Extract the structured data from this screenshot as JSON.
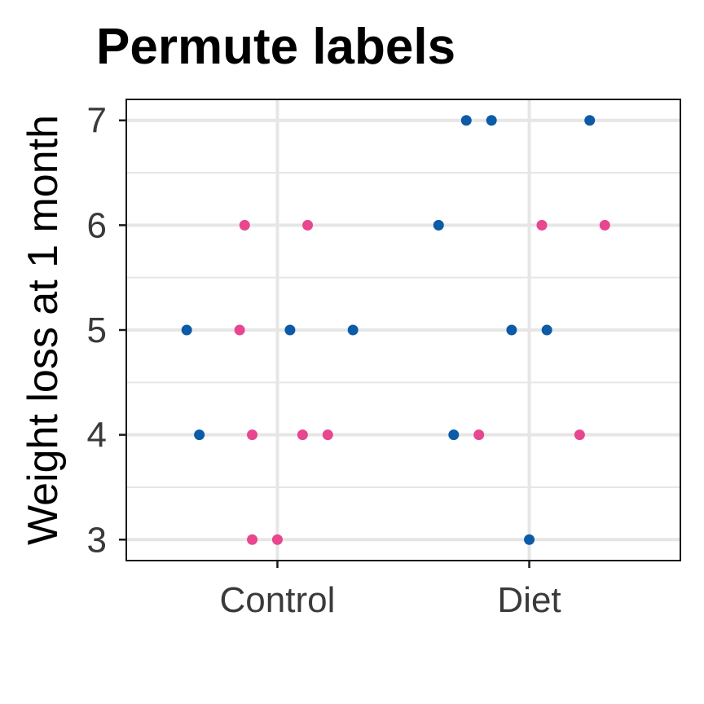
{
  "chart_data": {
    "type": "scatter",
    "title": "Permute labels",
    "xlabel": "",
    "ylabel": "Weight loss at 1 month",
    "categories": [
      "Control",
      "Diet"
    ],
    "y_ticks": [
      3,
      4,
      5,
      6,
      7
    ],
    "ylim": [
      2.8,
      7.2
    ],
    "grid": true,
    "legend": "none",
    "series": [
      {
        "color": "#0b5ba7",
        "points": [
          {
            "x": "Control",
            "offset": -0.36,
            "y": 5
          },
          {
            "x": "Control",
            "offset": 0.05,
            "y": 5
          },
          {
            "x": "Control",
            "offset": 0.3,
            "y": 5
          },
          {
            "x": "Control",
            "offset": -0.31,
            "y": 4
          },
          {
            "x": "Diet",
            "offset": -0.25,
            "y": 7
          },
          {
            "x": "Diet",
            "offset": -0.15,
            "y": 7
          },
          {
            "x": "Diet",
            "offset": 0.24,
            "y": 7
          },
          {
            "x": "Diet",
            "offset": -0.36,
            "y": 6
          },
          {
            "x": "Diet",
            "offset": -0.07,
            "y": 5
          },
          {
            "x": "Diet",
            "offset": 0.07,
            "y": 5
          },
          {
            "x": "Diet",
            "offset": -0.3,
            "y": 4
          },
          {
            "x": "Diet",
            "offset": 0.0,
            "y": 3
          }
        ]
      },
      {
        "color": "#e8468f",
        "points": [
          {
            "x": "Control",
            "offset": -0.13,
            "y": 6
          },
          {
            "x": "Control",
            "offset": 0.12,
            "y": 6
          },
          {
            "x": "Control",
            "offset": -0.15,
            "y": 5
          },
          {
            "x": "Control",
            "offset": -0.1,
            "y": 4
          },
          {
            "x": "Control",
            "offset": 0.1,
            "y": 4
          },
          {
            "x": "Control",
            "offset": 0.2,
            "y": 4
          },
          {
            "x": "Control",
            "offset": -0.1,
            "y": 3
          },
          {
            "x": "Control",
            "offset": 0.0,
            "y": 3
          },
          {
            "x": "Diet",
            "offset": 0.05,
            "y": 6
          },
          {
            "x": "Diet",
            "offset": 0.3,
            "y": 6
          },
          {
            "x": "Diet",
            "offset": -0.2,
            "y": 4
          },
          {
            "x": "Diet",
            "offset": 0.2,
            "y": 4
          }
        ]
      }
    ]
  }
}
